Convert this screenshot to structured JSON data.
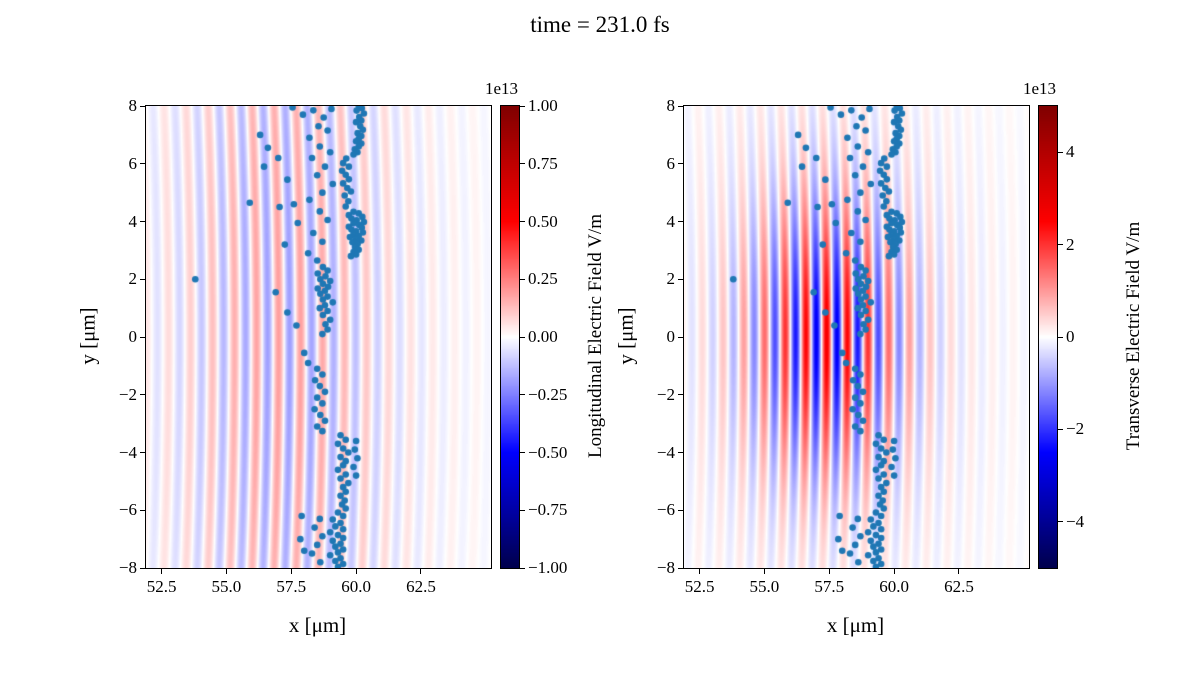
{
  "title": "time = 231.0 fs",
  "chart_data": {
    "type": "heatmap",
    "title": "time = 231.0 fs",
    "layout_hint": "two heatmap panels with overlaid particle scatter, vertical colorbars on right of each panel, shared scatter data",
    "panels": [
      {
        "name": "longitudinal-field-panel",
        "xlabel": "x [μm]",
        "ylabel": "y [μm]",
        "xlim": [
          51.9,
          65.2
        ],
        "ylim": [
          -8,
          8
        ],
        "xticks": [
          52.5,
          55.0,
          57.5,
          60.0,
          62.5
        ],
        "xtick_labels": [
          "52.5",
          "55.0",
          "57.5",
          "60.0",
          "62.5"
        ],
        "yticks": [
          8,
          6,
          4,
          2,
          0,
          -2,
          -4,
          -6,
          -8
        ],
        "ytick_labels": [
          "8",
          "6",
          "4",
          "2",
          "0",
          "−2",
          "−4",
          "−6",
          "−8"
        ],
        "colorbar": {
          "label": "Longitudinal Electric Field V/m",
          "offset_text": "1e13",
          "vmin": -1.0,
          "vmax": 1.0,
          "ticks": [
            1.0,
            0.75,
            0.5,
            0.25,
            0.0,
            -0.25,
            -0.5,
            -0.75,
            -1.0
          ],
          "tick_labels": [
            "1.00",
            "0.75",
            "0.50",
            "0.25",
            "0.00",
            "−0.25",
            "−0.50",
            "−0.75",
            "−1.00"
          ]
        },
        "field": {
          "amplitude": 0.14,
          "wavelength": 0.85,
          "center_x": 57.2,
          "sigma_x": 2.6,
          "sigma_y": 12,
          "curvature": 0.02,
          "tail_amplitude": 0.05,
          "tail_sigma_x": 5.5,
          "tail_sigma_y": 14
        }
      },
      {
        "name": "transverse-field-panel",
        "xlabel": "x [μm]",
        "ylabel": "y [μm]",
        "xlim": [
          51.9,
          65.2
        ],
        "ylim": [
          -8,
          8
        ],
        "xticks": [
          52.5,
          55.0,
          57.5,
          60.0,
          62.5
        ],
        "xtick_labels": [
          "52.5",
          "55.0",
          "57.5",
          "60.0",
          "62.5"
        ],
        "yticks": [
          8,
          6,
          4,
          2,
          0,
          -2,
          -4,
          -6,
          -8
        ],
        "ytick_labels": [
          "8",
          "6",
          "4",
          "2",
          "0",
          "−2",
          "−4",
          "−6",
          "−8"
        ],
        "colorbar": {
          "label": "Transverse Electric Field V/m",
          "offset_text": "1e13",
          "vmin": -5.0,
          "vmax": 5.0,
          "ticks": [
            4,
            2,
            0,
            -2,
            -4
          ],
          "tick_labels": [
            "4",
            "2",
            "0",
            "−2",
            "−4"
          ]
        },
        "field": {
          "amplitude": 0.45,
          "wavelength": 0.8,
          "center_x": 57.4,
          "sigma_x": 2.0,
          "sigma_y": 3.2,
          "curvature": 0.02,
          "tail_amplitude": 0.08,
          "tail_sigma_x": 4.5,
          "tail_sigma_y": 7.5
        }
      }
    ],
    "colormap": {
      "name": "seismic",
      "stops": [
        [
          0.0,
          "#00004d"
        ],
        [
          0.25,
          "#0000ff"
        ],
        [
          0.5,
          "#ffffff"
        ],
        [
          0.75,
          "#ff0000"
        ],
        [
          1.0,
          "#800000"
        ]
      ]
    },
    "scatter": {
      "color": "#1f77b4",
      "marker_radius_px": 3.3,
      "points": [
        [
          56.3,
          7.0
        ],
        [
          56.6,
          6.55
        ],
        [
          57.0,
          6.2
        ],
        [
          56.45,
          5.9
        ],
        [
          57.35,
          5.45
        ],
        [
          55.9,
          4.65
        ],
        [
          57.6,
          4.6
        ],
        [
          57.05,
          4.5
        ],
        [
          57.75,
          3.95
        ],
        [
          57.25,
          3.2
        ],
        [
          53.8,
          2.0
        ],
        [
          56.9,
          1.55
        ],
        [
          57.35,
          0.85
        ],
        [
          57.7,
          0.4
        ],
        [
          58.0,
          -0.55
        ],
        [
          58.15,
          -0.9
        ],
        [
          57.55,
          7.95
        ],
        [
          57.95,
          7.7
        ],
        [
          58.35,
          7.85
        ],
        [
          58.75,
          7.6
        ],
        [
          59.05,
          7.9
        ],
        [
          58.55,
          7.3
        ],
        [
          58.9,
          7.15
        ],
        [
          58.2,
          6.9
        ],
        [
          58.6,
          6.6
        ],
        [
          59.0,
          6.4
        ],
        [
          58.3,
          6.2
        ],
        [
          58.8,
          5.9
        ],
        [
          58.5,
          5.6
        ],
        [
          59.1,
          5.3
        ],
        [
          58.7,
          5.0
        ],
        [
          58.2,
          4.75
        ],
        [
          58.6,
          4.35
        ],
        [
          58.9,
          4.05
        ],
        [
          58.35,
          3.6
        ],
        [
          58.7,
          3.3
        ],
        [
          58.15,
          2.9
        ],
        [
          58.5,
          2.65
        ],
        [
          60.1,
          8.0
        ],
        [
          60.22,
          7.92
        ],
        [
          60.02,
          7.84
        ],
        [
          60.3,
          7.74
        ],
        [
          60.12,
          7.62
        ],
        [
          60.2,
          7.5
        ],
        [
          60.0,
          7.44
        ],
        [
          60.16,
          7.3
        ],
        [
          60.26,
          7.18
        ],
        [
          60.06,
          7.06
        ],
        [
          60.2,
          6.96
        ],
        [
          60.1,
          6.86
        ],
        [
          60.0,
          6.78
        ],
        [
          60.2,
          6.7
        ],
        [
          60.1,
          6.6
        ],
        [
          59.95,
          6.5
        ],
        [
          60.05,
          6.4
        ],
        [
          59.9,
          6.32
        ],
        [
          59.62,
          6.18
        ],
        [
          59.5,
          6.02
        ],
        [
          59.72,
          5.9
        ],
        [
          59.46,
          5.76
        ],
        [
          59.6,
          5.62
        ],
        [
          59.72,
          5.46
        ],
        [
          59.5,
          5.32
        ],
        [
          59.66,
          5.16
        ],
        [
          59.8,
          5.04
        ],
        [
          59.56,
          4.9
        ],
        [
          59.7,
          4.7
        ],
        [
          59.6,
          4.52
        ],
        [
          59.9,
          4.34
        ],
        [
          60.1,
          4.28
        ],
        [
          59.72,
          4.22
        ],
        [
          60.24,
          4.16
        ],
        [
          59.82,
          4.1
        ],
        [
          60.02,
          4.04
        ],
        [
          60.3,
          3.98
        ],
        [
          59.9,
          3.94
        ],
        [
          60.12,
          3.88
        ],
        [
          59.72,
          3.82
        ],
        [
          60.22,
          3.78
        ],
        [
          59.82,
          3.72
        ],
        [
          60.0,
          3.66
        ],
        [
          60.26,
          3.62
        ],
        [
          59.9,
          3.56
        ],
        [
          60.1,
          3.5
        ],
        [
          59.76,
          3.46
        ],
        [
          60.0,
          3.4
        ],
        [
          60.2,
          3.34
        ],
        [
          59.86,
          3.28
        ],
        [
          60.06,
          3.22
        ],
        [
          59.96,
          3.12
        ],
        [
          60.1,
          3.02
        ],
        [
          59.9,
          2.94
        ],
        [
          60.0,
          2.86
        ],
        [
          59.8,
          2.8
        ],
        [
          58.72,
          2.42
        ],
        [
          58.9,
          2.3
        ],
        [
          58.52,
          2.2
        ],
        [
          58.82,
          2.1
        ],
        [
          58.62,
          2.0
        ],
        [
          59.0,
          1.94
        ],
        [
          58.72,
          1.84
        ],
        [
          58.92,
          1.74
        ],
        [
          58.52,
          1.68
        ],
        [
          58.8,
          1.6
        ],
        [
          58.62,
          1.5
        ],
        [
          58.9,
          1.4
        ],
        [
          58.72,
          1.3
        ],
        [
          59.1,
          1.2
        ],
        [
          58.8,
          1.1
        ],
        [
          58.6,
          1.0
        ],
        [
          58.9,
          0.9
        ],
        [
          58.72,
          0.76
        ],
        [
          59.0,
          0.6
        ],
        [
          58.82,
          0.44
        ],
        [
          58.9,
          0.26
        ],
        [
          58.7,
          0.1
        ],
        [
          58.5,
          -1.1
        ],
        [
          58.7,
          -1.3
        ],
        [
          58.42,
          -1.5
        ],
        [
          58.6,
          -1.7
        ],
        [
          58.8,
          -1.9
        ],
        [
          58.5,
          -2.1
        ],
        [
          58.7,
          -2.3
        ],
        [
          58.4,
          -2.5
        ],
        [
          58.62,
          -2.7
        ],
        [
          58.8,
          -2.9
        ],
        [
          58.5,
          -3.1
        ],
        [
          58.7,
          -3.26
        ],
        [
          59.4,
          -3.4
        ],
        [
          59.6,
          -3.56
        ],
        [
          59.3,
          -3.7
        ],
        [
          59.5,
          -3.86
        ],
        [
          59.7,
          -4.0
        ],
        [
          59.4,
          -4.16
        ],
        [
          59.6,
          -4.3
        ],
        [
          59.5,
          -4.44
        ],
        [
          59.3,
          -4.6
        ],
        [
          59.6,
          -4.76
        ],
        [
          59.4,
          -4.9
        ],
        [
          59.7,
          -5.06
        ],
        [
          59.5,
          -5.2
        ],
        [
          59.6,
          -5.36
        ],
        [
          59.4,
          -5.5
        ],
        [
          59.56,
          -5.66
        ],
        [
          59.46,
          -5.8
        ],
        [
          59.6,
          -5.94
        ],
        [
          60.0,
          -3.6
        ],
        [
          59.95,
          -3.9
        ],
        [
          60.05,
          -4.2
        ],
        [
          59.9,
          -4.5
        ],
        [
          60.0,
          -4.8
        ],
        [
          59.3,
          -6.08
        ],
        [
          59.5,
          -6.2
        ],
        [
          59.1,
          -6.32
        ],
        [
          59.4,
          -6.44
        ],
        [
          59.2,
          -6.56
        ],
        [
          59.5,
          -6.66
        ],
        [
          59.0,
          -6.76
        ],
        [
          59.3,
          -6.86
        ],
        [
          59.5,
          -6.96
        ],
        [
          59.1,
          -7.06
        ],
        [
          59.4,
          -7.16
        ],
        [
          59.2,
          -7.26
        ],
        [
          59.5,
          -7.36
        ],
        [
          59.3,
          -7.46
        ],
        [
          59.0,
          -7.56
        ],
        [
          59.4,
          -7.66
        ],
        [
          59.2,
          -7.76
        ],
        [
          59.5,
          -7.86
        ],
        [
          59.3,
          -7.96
        ],
        [
          58.6,
          -6.3
        ],
        [
          58.4,
          -6.6
        ],
        [
          58.7,
          -6.9
        ],
        [
          58.5,
          -7.2
        ],
        [
          58.3,
          -7.5
        ],
        [
          58.62,
          -7.8
        ],
        [
          57.9,
          -6.2
        ],
        [
          58.0,
          -7.4
        ],
        [
          57.85,
          -7.0
        ]
      ]
    }
  }
}
